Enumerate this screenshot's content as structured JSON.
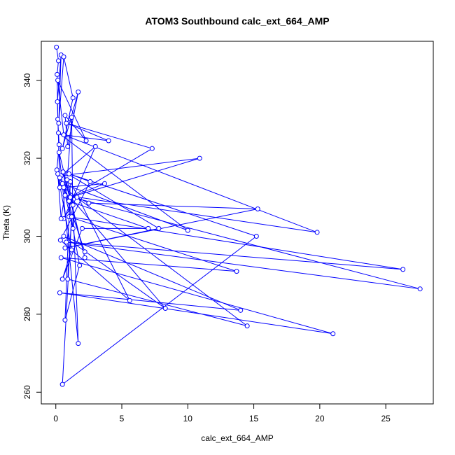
{
  "chart_data": {
    "type": "line",
    "title": "ATOM3 Southbound calc_ext_664_AMP",
    "xlabel": "calc_ext_664_AMP",
    "ylabel": "Theta (K)",
    "xlim": [
      -1.1,
      28.6
    ],
    "ylim": [
      257,
      350
    ],
    "xticks": [
      0,
      5,
      10,
      15,
      20,
      25
    ],
    "yticks": [
      260,
      280,
      300,
      320,
      340
    ],
    "series_color": "#0000ff",
    "markers": "open-circle",
    "grid": false,
    "series": [
      {
        "x": [
          0.05,
          0.2,
          0.1,
          0.15,
          0.25,
          0.08,
          0.3,
          0.12,
          0.4,
          0.22,
          0.6,
          1.3,
          0.5,
          1.7,
          0.9,
          0.7,
          2.3,
          0.15,
          0.6,
          4.0,
          0.8,
          7.3,
          1.1,
          10.9,
          0.4,
          3.0,
          0.6,
          1.6,
          2.5,
          15.3,
          0.7,
          7.8,
          0.9,
          1.2,
          1.3,
          0.5,
          10.0,
          0.2,
          19.8,
          0.7,
          27.6,
          0.8,
          26.3,
          1.0,
          13.7,
          0.4,
          21.0,
          0.3,
          14.0,
          0.6,
          8.3,
          1.1,
          3.7,
          0.6,
          14.5,
          0.9,
          1.2,
          0.5,
          15.2,
          1.0,
          2.6,
          0.35,
          5.6,
          1.1,
          0.7,
          1.8,
          0.55,
          2.2,
          0.25,
          1.7,
          1.3,
          0.85,
          0.4,
          0.15,
          1.2,
          0.5,
          2.0,
          7.0,
          1.0,
          0.3,
          2.2
        ],
        "y": [
          348.5,
          345.0,
          341.5,
          330.0,
          323.5,
          317.0,
          312.5,
          334.5,
          346.5,
          329.0,
          346.0,
          335.5,
          322.5,
          337.0,
          323.0,
          331.0,
          324.5,
          340.0,
          326.0,
          324.5,
          329.0,
          322.5,
          310.0,
          320.0,
          315.5,
          323.0,
          304.5,
          310.0,
          308.5,
          307.0,
          297.0,
          302.0,
          316.0,
          330.5,
          302.0,
          313.5,
          301.5,
          326.5,
          301.0,
          310.5,
          286.5,
          298.5,
          291.5,
          305.0,
          291.0,
          294.5,
          275.0,
          285.5,
          281.0,
          300.0,
          281.5,
          310.0,
          313.5,
          312.5,
          277.0,
          289.0,
          305.0,
          262.0,
          300.0,
          316.0,
          314.0,
          299.0,
          283.5,
          314.0,
          278.5,
          292.5,
          316.5,
          294.5,
          321.5,
          272.5,
          308.0,
          314.5,
          304.5,
          316.0,
          296.5,
          289.0,
          302.0,
          302.0,
          309.0,
          315.0,
          296.0
        ]
      }
    ]
  }
}
